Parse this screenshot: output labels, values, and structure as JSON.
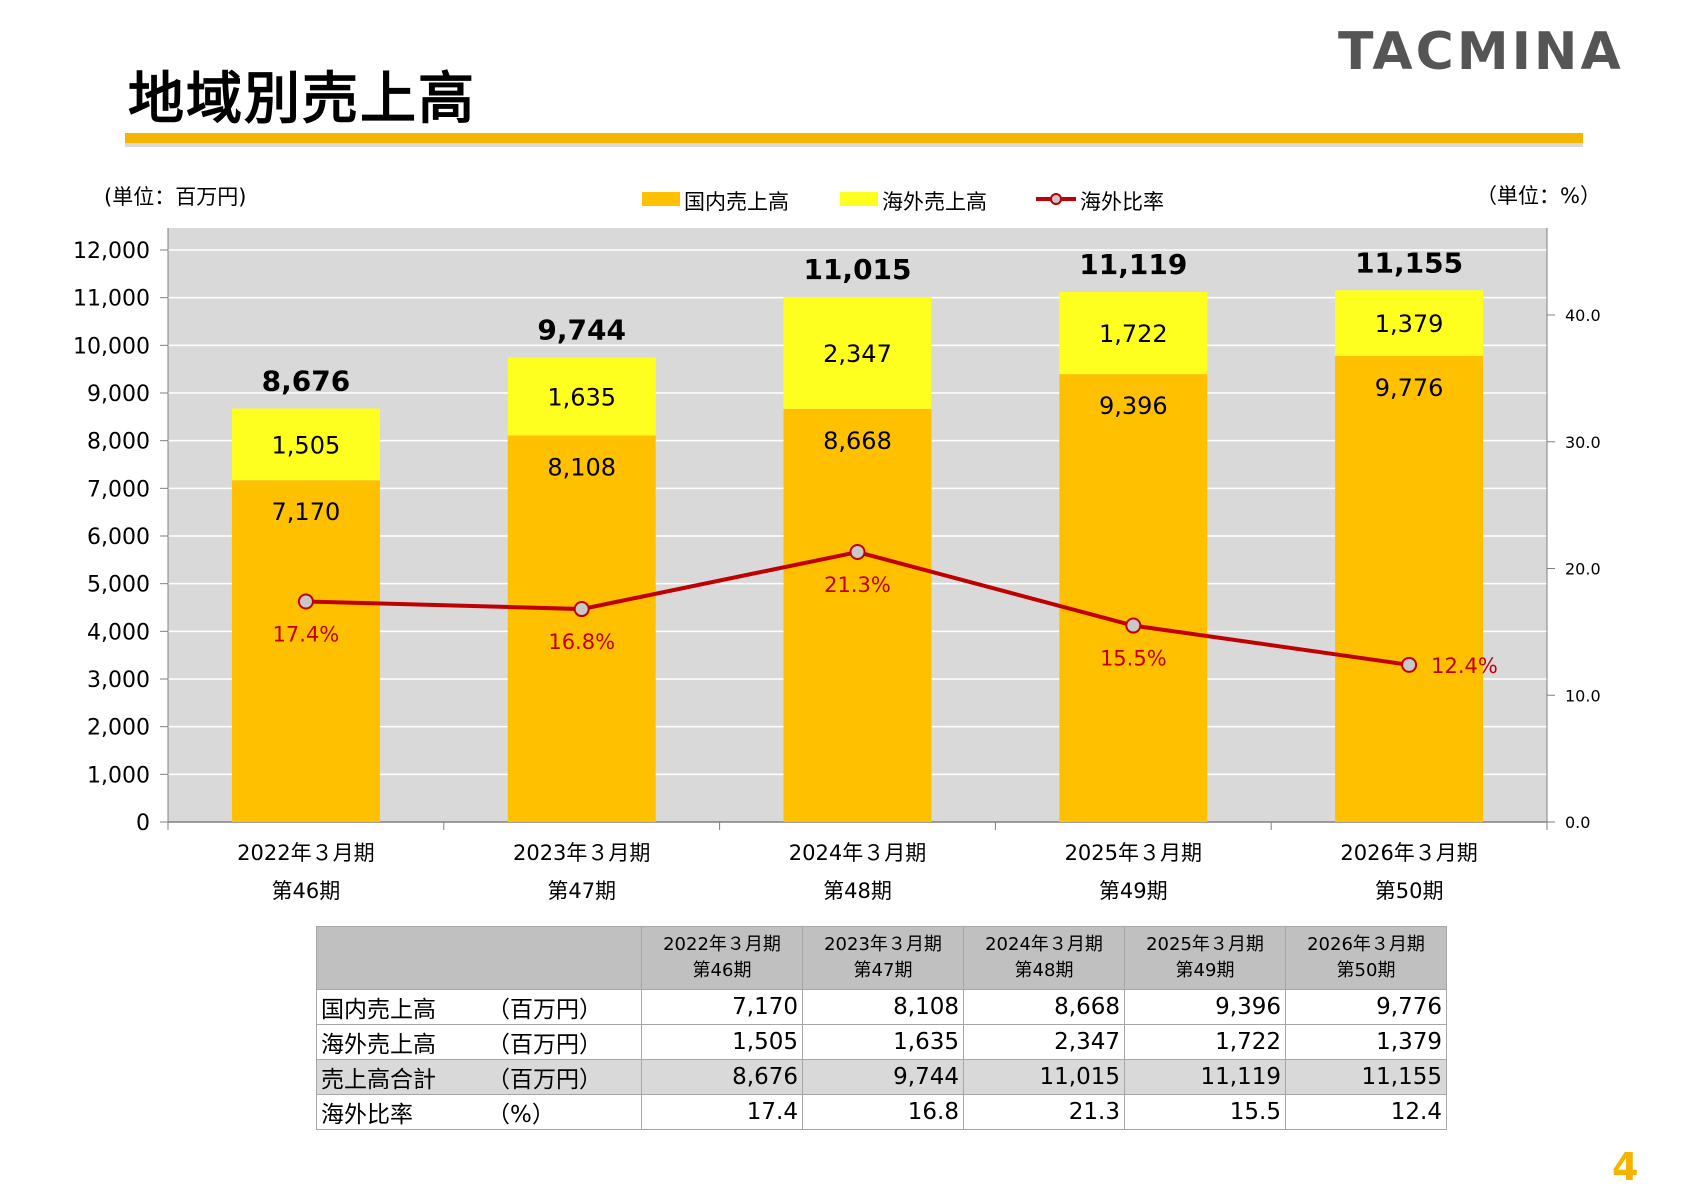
{
  "brand": {
    "logo_text": "TACMINA",
    "accent": "#f4b400"
  },
  "page": {
    "title": "地域別売上高",
    "number": "4"
  },
  "units": {
    "left": "(単位：百万円)",
    "right": "（単位：%）"
  },
  "chart_data": {
    "type": "bar",
    "stacked": true,
    "categories": [
      [
        "2022年３月期",
        "第46期"
      ],
      [
        "2023年３月期",
        "第47期"
      ],
      [
        "2024年３月期",
        "第48期"
      ],
      [
        "2025年３月期",
        "第49期"
      ],
      [
        "2026年３月期",
        "第50期"
      ]
    ],
    "series": [
      {
        "name": "国内売上高",
        "values": [
          7170,
          8108,
          8668,
          9396,
          9776
        ],
        "color": "#ffc000",
        "labels": [
          "7,170",
          "8,108",
          "8,668",
          "9,396",
          "9,776"
        ]
      },
      {
        "name": "海外売上高",
        "values": [
          1505,
          1635,
          2347,
          1722,
          1379
        ],
        "color": "#ffff1f",
        "labels": [
          "1,505",
          "1,635",
          "2,347",
          "1,722",
          "1,379"
        ]
      }
    ],
    "totals": [
      "8,676",
      "9,744",
      "11,015",
      "11,119",
      "11,155"
    ],
    "line": {
      "name": "海外比率",
      "values": [
        17.4,
        16.8,
        21.3,
        15.5,
        12.4
      ],
      "labels": [
        "17.4%",
        "16.8%",
        "21.3%",
        "15.5%",
        "12.4%"
      ],
      "color": "#c00000",
      "axis": "right"
    },
    "ylim": [
      0,
      12000
    ],
    "y_ticks": [
      "0",
      "1,000",
      "2,000",
      "3,000",
      "4,000",
      "5,000",
      "6,000",
      "7,000",
      "8,000",
      "9,000",
      "10,000",
      "11,000",
      "12,000"
    ],
    "y2lim": [
      0,
      45
    ],
    "y2_ticks": [
      "0.0",
      "10.0",
      "20.0",
      "30.0",
      "40.0"
    ],
    "grid": true,
    "legend": "top-center",
    "plot_background": "#d9d9d9"
  },
  "table": {
    "header": [
      "2022年３月期\n第46期",
      "2023年３月期\n第47期",
      "2024年３月期\n第48期",
      "2025年３月期\n第49期",
      "2026年３月期\n第50期"
    ],
    "header_years": [
      "2022年３月期",
      "2023年３月期",
      "2024年３月期",
      "2025年３月期",
      "2026年３月期"
    ],
    "header_periods": [
      "第46期",
      "第47期",
      "第48期",
      "第49期",
      "第50期"
    ],
    "rows": [
      {
        "label": "国内売上高",
        "unit": "（百万円）",
        "values": [
          "7,170",
          "8,108",
          "8,668",
          "9,396",
          "9,776"
        ]
      },
      {
        "label": "海外売上高",
        "unit": "（百万円）",
        "values": [
          "1,505",
          "1,635",
          "2,347",
          "1,722",
          "1,379"
        ]
      },
      {
        "label": "売上高合計",
        "unit": "（百万円）",
        "values": [
          "8,676",
          "9,744",
          "11,015",
          "11,119",
          "11,155"
        ]
      },
      {
        "label": "海外比率",
        "unit": "（%）",
        "values": [
          "17.4",
          "16.8",
          "21.3",
          "15.5",
          "12.4"
        ]
      }
    ]
  }
}
